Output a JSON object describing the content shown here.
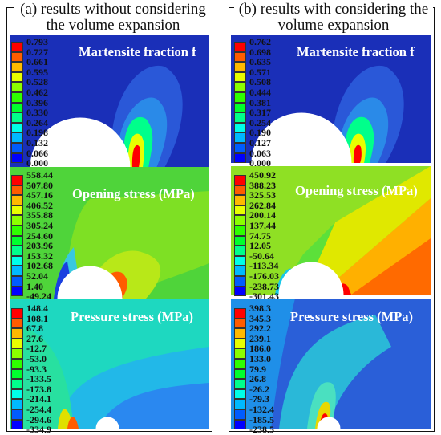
{
  "colors": {
    "scale": [
      "#0000ff",
      "#005cff",
      "#00b9ff",
      "#00ffe8",
      "#00ff8b",
      "#00ff2e",
      "#2eff00",
      "#8bff00",
      "#e8ff00",
      "#ffb900",
      "#ff5c00",
      "#ff0000"
    ]
  },
  "panels": [
    {
      "caption": "(a) results without considering the volume expansion",
      "plots": [
        {
          "title": "Martensite fraction f",
          "field": "martensite",
          "ticks": [
            "0.793",
            "0.727",
            "0.661",
            "0.595",
            "0.528",
            "0.462",
            "0.396",
            "0.330",
            "0.264",
            "0.198",
            "0.132",
            "0.066",
            "0.000"
          ]
        },
        {
          "title": "Opening stress (MPa)",
          "field": "opening",
          "ticks": [
            "558.44",
            "507.80",
            "457.16",
            "406.52",
            "355.88",
            "305.24",
            "254.60",
            "203.96",
            "153.32",
            "102.68",
            "52.04",
            "1.40",
            "-49.24"
          ]
        },
        {
          "title": "Pressure stress (MPa)",
          "field": "pressure",
          "ticks": [
            "148.4",
            "108.1",
            "67.8",
            "27.6",
            "-12.7",
            "-53.0",
            "-93.3",
            "-133.5",
            "-173.8",
            "-214.1",
            "-254.4",
            "-294.6",
            "-334.9"
          ]
        }
      ]
    },
    {
      "caption": "(b) results with considering the volume expansion",
      "plots": [
        {
          "title": "Martensite fraction f",
          "field": "martensite",
          "ticks": [
            "0.762",
            "0.698",
            "0.635",
            "0.571",
            "0.508",
            "0.444",
            "0.381",
            "0.317",
            "0.254",
            "0.190",
            "0.127",
            "0.063",
            "0.000"
          ]
        },
        {
          "title": "Opening stress (MPa)",
          "field": "opening",
          "ticks": [
            "450.92",
            "388.23",
            "325.53",
            "262.84",
            "200.14",
            "137.44",
            "74.75",
            "12.05",
            "-50.64",
            "-113.34",
            "-176.03",
            "-238.73",
            "-301.43"
          ]
        },
        {
          "title": "Pressure stress (MPa)",
          "field": "pressure",
          "ticks": [
            "398.3",
            "345.3",
            "292.2",
            "239.1",
            "186.0",
            "133.0",
            "79.9",
            "26.8",
            "-26.2",
            "-79.3",
            "-132.4",
            "-185.5",
            "-238.5"
          ]
        }
      ]
    }
  ]
}
